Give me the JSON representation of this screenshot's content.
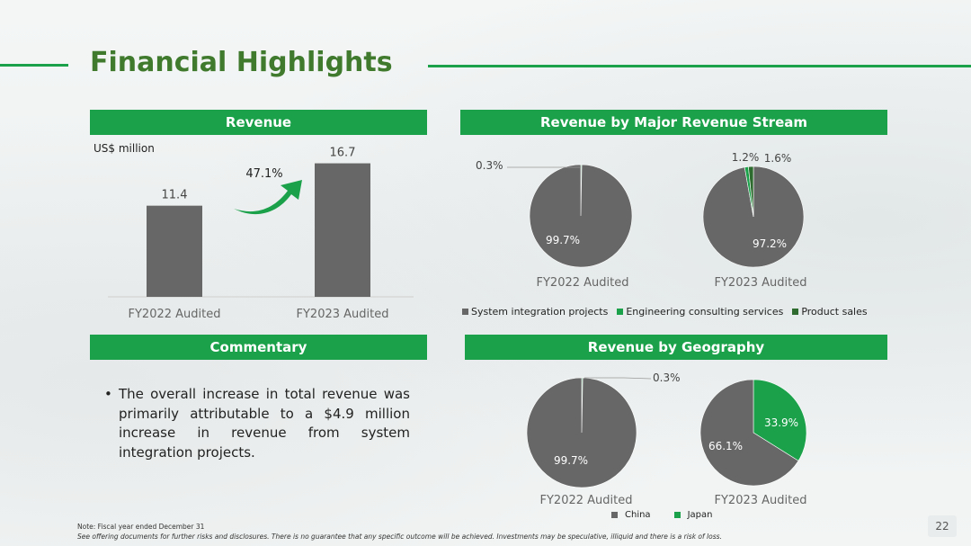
{
  "title": "Financial Highlights",
  "colors": {
    "accent": "#1aa14a",
    "title": "#3f7a2d",
    "bar": "#676767",
    "pie_gray": "#676767",
    "pie_green": "#1aa14a",
    "pie_dark_green": "#2e6b2e"
  },
  "sections": {
    "revenue": "Revenue",
    "stream": "Revenue by Major Revenue Stream",
    "commentary": "Commentary",
    "geography": "Revenue by Geography"
  },
  "revenue_unit": "US$ million",
  "growth_label": "47.1%",
  "commentary_bullet": "•",
  "commentary_text": "The overall increase in total revenue was primarily attributable to a $4.9 million increase in revenue from system integration projects.",
  "stream_legend": [
    "System integration projects",
    "Engineering consulting services",
    "Product sales"
  ],
  "geo_legend": [
    "China",
    "Japan"
  ],
  "note_line1": "Note: Fiscal year ended  December 31",
  "note_line2": "See offering documents for further risks and disclosures. There is no guarantee that any specific outcome will be achieved. Investments may be speculative, illiquid and there is a risk of loss.",
  "page_number": "22",
  "chart_data": [
    {
      "type": "bar",
      "categories": [
        "FY2022 Audited",
        "FY2023 Audited"
      ],
      "values": [
        11.4,
        16.7
      ],
      "data_labels": [
        "11.4",
        "16.7"
      ],
      "ylabel": "US$ million",
      "ylim": [
        0,
        18
      ]
    },
    {
      "type": "pie",
      "label": "FY2022 Audited",
      "slices": [
        {
          "name": "System integration projects",
          "value": 99.7,
          "label": "99.7%"
        },
        {
          "name": "Engineering consulting services",
          "value": 0.3,
          "label": "0.3%"
        }
      ]
    },
    {
      "type": "pie",
      "label": "FY2023 Audited",
      "slices": [
        {
          "name": "System integration projects",
          "value": 97.2,
          "label": "97.2%"
        },
        {
          "name": "Engineering consulting services",
          "value": 1.2,
          "label": "1.2%"
        },
        {
          "name": "Product sales",
          "value": 1.6,
          "label": "1.6%"
        }
      ]
    },
    {
      "type": "pie",
      "label": "FY2022 Audited",
      "slices": [
        {
          "name": "China",
          "value": 99.7,
          "label": "99.7%"
        },
        {
          "name": "Japan",
          "value": 0.3,
          "label": "0.3%"
        }
      ]
    },
    {
      "type": "pie",
      "label": "FY2023 Audited",
      "slices": [
        {
          "name": "China",
          "value": 66.1,
          "label": "66.1%"
        },
        {
          "name": "Japan",
          "value": 33.9,
          "label": "33.9%"
        }
      ]
    }
  ]
}
